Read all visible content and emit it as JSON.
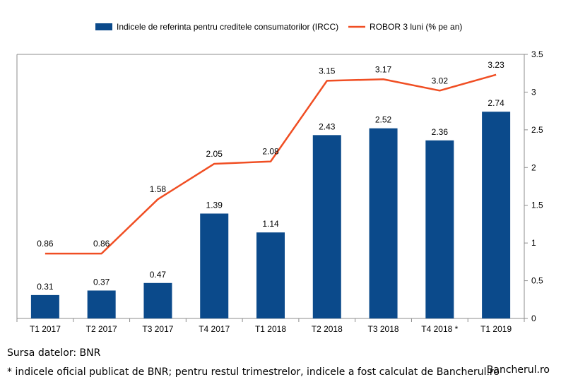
{
  "chart_data": {
    "type": "bar",
    "categories": [
      "T1 2017",
      "T2 2017",
      "T3 2017",
      "T4 2017",
      "T1 2018",
      "T2 2018",
      "T3 2018",
      "T4 2018 *",
      "T1 2019"
    ],
    "series": [
      {
        "name": "Indicele de referinta pentru creditele consumatorilor (IRCC)",
        "type": "bar",
        "color": "#0b4a8b",
        "values": [
          0.31,
          0.37,
          0.47,
          1.39,
          1.14,
          2.43,
          2.52,
          2.36,
          2.74
        ],
        "labels": [
          "0.31",
          "0.37",
          "0.47",
          "1.39",
          "1.14",
          "2.43",
          "2.52",
          "2.36",
          "2.74"
        ]
      },
      {
        "name": "ROBOR 3 luni (% pe an)",
        "type": "line",
        "color": "#f04e23",
        "values": [
          0.86,
          0.86,
          1.58,
          2.05,
          2.08,
          3.15,
          3.17,
          3.02,
          3.23
        ],
        "labels": [
          "0.86",
          "0.86",
          "1.58",
          "2.05",
          "2.08",
          "3.15",
          "3.17",
          "3.02",
          "3.23"
        ]
      }
    ],
    "ylim": [
      0,
      3.5
    ],
    "yticks": [
      0,
      0.5,
      1,
      1.5,
      2,
      2.5,
      3,
      3.5
    ],
    "ytick_labels": [
      "0",
      "0.5",
      "1",
      "1.5",
      "2",
      "2.5",
      "3",
      "3.5"
    ],
    "y_axis_side": "right",
    "grid": false,
    "legend_position": "top"
  },
  "source_text": "Sursa datelor: BNR",
  "footnote_text": "* indicele oficial publicat de BNR; pentru restul trimestrelor,  indicele a fost calculat de Bancherul.ro",
  "brand_text": "Bancherul.ro"
}
